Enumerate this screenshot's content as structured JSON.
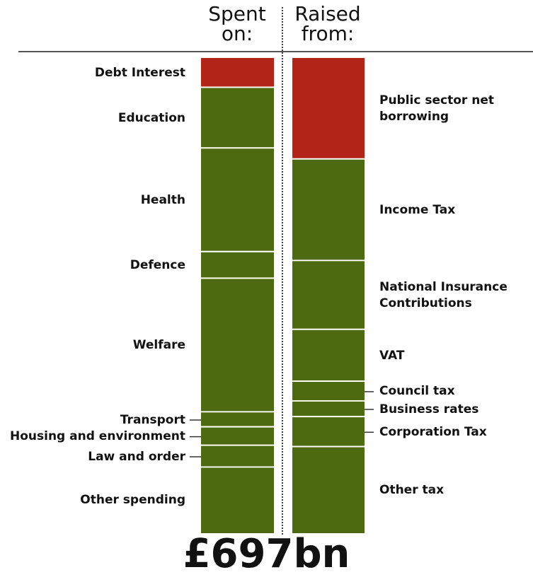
{
  "chart_data": {
    "type": "bar",
    "subtype": "stacked-comparison",
    "total": "£697bn",
    "total_bn": 697,
    "colors": {
      "borrowing": "#b22418",
      "tax": "#4e6a11",
      "separator": "#ffffff"
    },
    "columns": [
      {
        "name": "Spent on",
        "header": [
          "Spent",
          "on:"
        ],
        "segments": [
          {
            "label": "Debt Interest",
            "value": 44,
            "kind": "borrowing",
            "leader": false
          },
          {
            "label": "Education",
            "value": 89,
            "kind": "tax",
            "leader": false
          },
          {
            "label": "Health",
            "value": 152,
            "kind": "tax",
            "leader": false
          },
          {
            "label": "Defence",
            "value": 39,
            "kind": "tax",
            "leader": false
          },
          {
            "label": "Welfare",
            "value": 196,
            "kind": "tax",
            "leader": false
          },
          {
            "label": "Transport",
            "value": 22,
            "kind": "tax",
            "leader": true
          },
          {
            "label": "Housing and environment",
            "value": 27,
            "kind": "tax",
            "leader": true
          },
          {
            "label": "Law and order",
            "value": 32,
            "kind": "tax",
            "leader": true
          },
          {
            "label": "Other spending",
            "value": 96,
            "kind": "tax",
            "leader": false
          }
        ]
      },
      {
        "name": "Raised from",
        "header": [
          "Raised",
          "from:"
        ],
        "segments": [
          {
            "label": "Public sector net borrowing",
            "value": 149,
            "kind": "borrowing",
            "leader": false
          },
          {
            "label": "Income Tax",
            "value": 149,
            "kind": "tax",
            "leader": false
          },
          {
            "label": "National Insurance Contributions",
            "value": 101,
            "kind": "tax",
            "leader": false
          },
          {
            "label": "VAT",
            "value": 76,
            "kind": "tax",
            "leader": false
          },
          {
            "label": "Council tax",
            "value": 29,
            "kind": "tax",
            "leader": true
          },
          {
            "label": "Business rates",
            "value": 23,
            "kind": "tax",
            "leader": true
          },
          {
            "label": "Corporation Tax",
            "value": 44,
            "kind": "tax",
            "leader": true
          },
          {
            "label": "Other tax",
            "value": 126,
            "kind": "tax",
            "leader": false
          }
        ]
      }
    ]
  },
  "labels_multiline": {
    "Public sector net borrowing": [
      "Public sector net",
      "borrowing"
    ],
    "National Insurance Contributions": [
      "National Insurance",
      "Contributions"
    ]
  }
}
